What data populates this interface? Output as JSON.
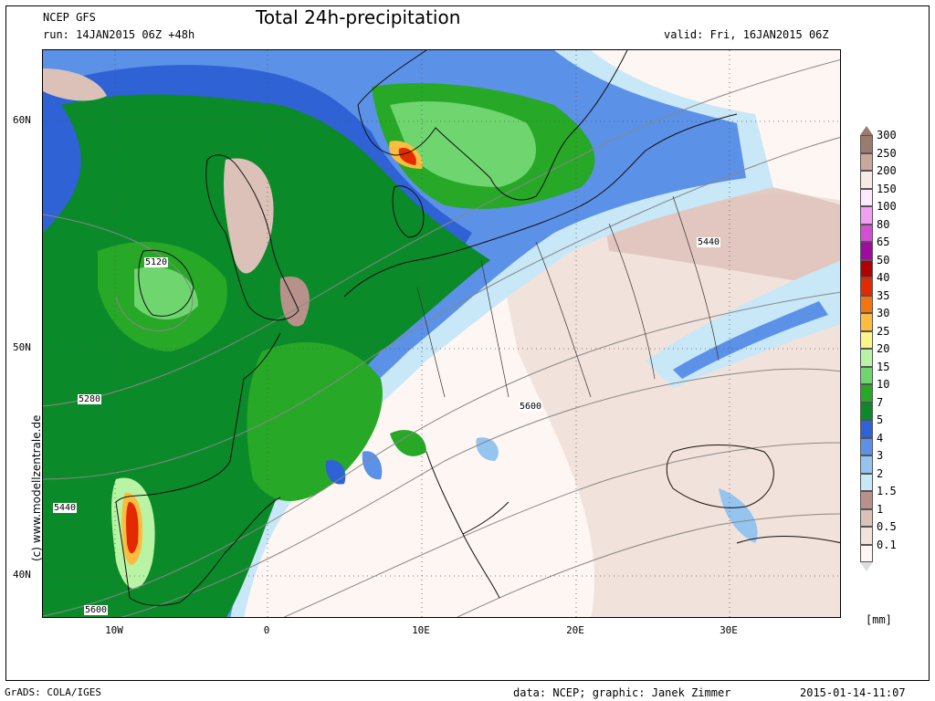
{
  "header": {
    "model": "NCEP GFS",
    "run": "run: 14JAN2015 06Z +48h",
    "title": "Total 24h-precipitation",
    "valid": "valid: Fri, 16JAN2015 06Z"
  },
  "axes": {
    "lat_labels": [
      "60N",
      "50N",
      "40N"
    ],
    "lon_labels": [
      "10W",
      "0",
      "10E",
      "20E",
      "30E"
    ]
  },
  "contours": {
    "labels": [
      "5120",
      "5280",
      "5440",
      "5600",
      "5440",
      "5600"
    ]
  },
  "watermark": "(c) www.modellzentrale.de",
  "legend": {
    "unit": "[mm]",
    "items": [
      {
        "label": "300",
        "color": "#9b7b6e"
      },
      {
        "label": "250",
        "color": "#c9a79a"
      },
      {
        "label": "200",
        "color": "#f7e9e3"
      },
      {
        "label": "150",
        "color": "#fdebfd"
      },
      {
        "label": "100",
        "color": "#f29ef2"
      },
      {
        "label": "80",
        "color": "#d64ed6"
      },
      {
        "label": "65",
        "color": "#a00aa0"
      },
      {
        "label": "50",
        "color": "#b00000"
      },
      {
        "label": "40",
        "color": "#e22a00"
      },
      {
        "label": "35",
        "color": "#f57412"
      },
      {
        "label": "30",
        "color": "#fbbc3f"
      },
      {
        "label": "25",
        "color": "#fdf48a"
      },
      {
        "label": "20",
        "color": "#b9f4a5"
      },
      {
        "label": "15",
        "color": "#6fd56f"
      },
      {
        "label": "10",
        "color": "#27a827"
      },
      {
        "label": "7",
        "color": "#0b8a2a"
      },
      {
        "label": "5",
        "color": "#2f62d4"
      },
      {
        "label": "4",
        "color": "#5c91e8"
      },
      {
        "label": "3",
        "color": "#95c4ef"
      },
      {
        "label": "2",
        "color": "#c8e7f7"
      },
      {
        "label": "1.5",
        "color": "#b8928a"
      },
      {
        "label": "1",
        "color": "#dcc1b8"
      },
      {
        "label": "0.5",
        "color": "#f2e2dc"
      },
      {
        "label": "0.1",
        "color": "#fdf6f3"
      }
    ]
  },
  "footer": {
    "software": "GrADS: COLA/IGES",
    "credits": "data: NCEP; graphic: Janek Zimmer",
    "timestamp": "2015-01-14-11:07"
  }
}
